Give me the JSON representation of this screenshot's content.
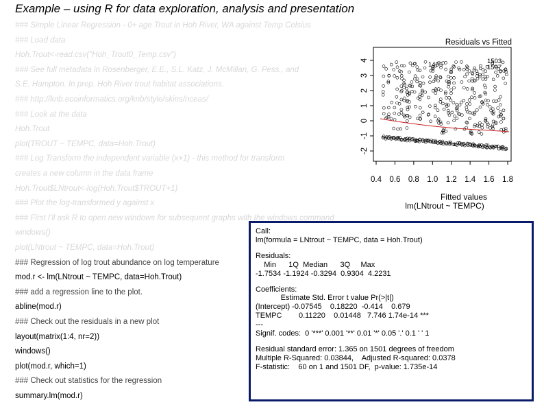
{
  "slide": {
    "title": "Example – using R for data exploration, analysis and presentation"
  },
  "code_lines": [
    {
      "text": "### Simple Linear Regression - 0+ age Trout in Hoh River, WA against Temp Celsius",
      "style": "comment"
    },
    {
      "text": "### Load data",
      "style": "comment"
    },
    {
      "text": "Hoh.Trout<-read.csv(\"Hoh_Trout0_Temp.csv\")",
      "style": "comment"
    },
    {
      "text": "### See full metadata in Rosenberger, E.E., S.L. Katz, J. McMillan, G. Pess., and",
      "style": "comment"
    },
    {
      "text": "S.E. Hampton. In prep. Hoh River trout habitat associations.",
      "style": "comment"
    },
    {
      "text": "### http://knb.ecoinformatics.org/knb/style/skins/nceas/",
      "style": "comment"
    },
    {
      "text": "### Look at the data",
      "style": "comment"
    },
    {
      "text": "Hoh.Trout",
      "style": "comment"
    },
    {
      "text": "plot(TROUT ~ TEMPC, data=Hoh.Trout)",
      "style": "comment"
    },
    {
      "text": "### Log Transform the independent variable (x+1) - this method for transform",
      "style": "comment"
    },
    {
      "text": "creates a new column in the data frame",
      "style": "comment"
    },
    {
      "text": "Hoh.Trout$LNtrout<-log(Hoh.Trout$TROUT+1)",
      "style": "comment"
    },
    {
      "text": "### Plot the log-transformed y against x",
      "style": "comment"
    },
    {
      "text": "### First I'll ask R to open new windows for subsequent graphs with the windows command",
      "style": "comment"
    },
    {
      "text": "windows()",
      "style": "comment"
    },
    {
      "text": "plot(LNtrout ~ TEMPC, data=Hoh.Trout)",
      "style": "comment"
    },
    {
      "text": "### Regression of log trout abundance on log temperature",
      "style": "plain"
    },
    {
      "text": "mod.r <- lm(LNtrout ~ TEMPC, data=Hoh.Trout)",
      "style": "code"
    },
    {
      "text": "### add a regression line to the plot.",
      "style": "plain"
    },
    {
      "text": "abline(mod.r)",
      "style": "code"
    },
    {
      "text": "### Check out the residuals in a new plot",
      "style": "plain"
    },
    {
      "text": "layout(matrix(1:4, nr=2))",
      "style": "code"
    },
    {
      "text": "windows()",
      "style": "code"
    },
    {
      "text": "plot(mod.r, which=1)",
      "style": "code"
    },
    {
      "text": "### Check out statistics for the regression",
      "style": "plain"
    },
    {
      "text": "summary.lm(mod.r)",
      "style": "code"
    }
  ],
  "residual_plot": {
    "title": "Residuals vs Fitted",
    "xlabel": "Fitted values",
    "model_label": "lm(LNtrout ~ TEMPC)",
    "x_ticks": [
      "0.4",
      "0.6",
      "0.8",
      "1.0",
      "1.2",
      "1.4",
      "1.6",
      "1.8"
    ],
    "y_ticks": [
      "-2",
      "-1",
      "0",
      "1",
      "2",
      "3",
      "4"
    ],
    "outlier_labels": [
      "1495",
      "1503",
      "1507"
    ]
  },
  "summary_output": [
    "Call:",
    "lm(formula = LNtrout ~ TEMPC, data = Hoh.Trout)",
    "",
    "Residuals:",
    "    Min      1Q  Median      3Q     Max",
    "-1.7534 -1.1924 -0.3294  0.9304  4.2231",
    "",
    "Coefficients:",
    "            Estimate Std. Error t value Pr(>|t|)",
    "(Intercept) -0.07545    0.18220  -0.414    0.679",
    "TEMPC        0.11220    0.01448   7.746 1.74e-14 ***",
    "---",
    "Signif. codes:  0 '***' 0.001 '**' 0.01 '*' 0.05 '.' 0.1 ' ' 1",
    "",
    "Residual standard error: 1.365 on 1501 degrees of freedom",
    "Multiple R-Squared: 0.03844,    Adjusted R-squared: 0.0378",
    "F-statistic:    60 on 1 and 1501 DF,  p-value: 1.735e-14"
  ]
}
